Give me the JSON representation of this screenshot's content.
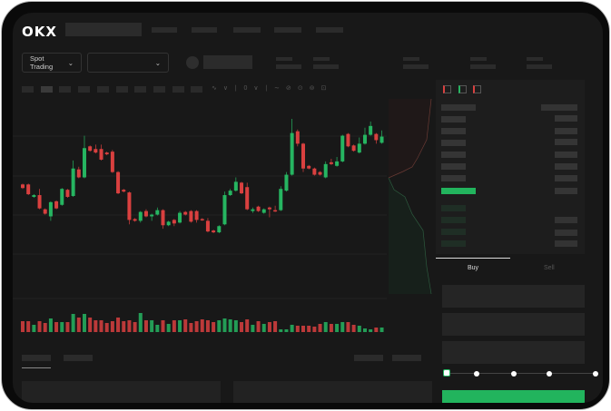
{
  "header": {
    "logo": "OKX"
  },
  "market_selector": {
    "label": "Spot Trading"
  },
  "trade_panel": {
    "tabs": [
      {
        "label": "Buy",
        "active": true
      },
      {
        "label": "Sell",
        "active": false
      }
    ],
    "slider_steps": 5,
    "slider_value": 0
  },
  "colors": {
    "up": "#26b561",
    "down": "#d9403f",
    "background": "#181818",
    "accent_button": "#22b45d"
  },
  "chart_data": {
    "type": "candlestick",
    "ohlc_order": [
      "open",
      "close",
      "high",
      "low"
    ],
    "candles": [
      [
        57,
        53,
        58,
        52
      ],
      [
        57,
        46,
        58,
        45
      ],
      [
        43,
        45,
        46,
        42
      ],
      [
        45,
        30,
        52,
        29
      ],
      [
        29,
        24,
        30,
        23
      ],
      [
        21,
        37,
        38,
        16
      ],
      [
        38,
        30,
        39,
        29
      ],
      [
        34,
        52,
        53,
        33
      ],
      [
        51,
        43,
        52,
        42
      ],
      [
        44,
        75,
        84,
        43
      ],
      [
        74,
        65,
        77,
        64
      ],
      [
        65,
        98,
        112,
        64
      ],
      [
        100,
        95,
        101,
        94
      ],
      [
        97,
        93,
        102,
        92
      ],
      [
        97,
        85,
        102,
        84
      ],
      [
        93,
        91,
        94,
        90
      ],
      [
        94,
        71,
        96,
        70
      ],
      [
        71,
        47,
        72,
        46
      ],
      [
        51,
        49,
        52,
        48
      ],
      [
        48,
        17,
        49,
        12
      ],
      [
        18,
        16,
        19,
        15
      ],
      [
        16,
        26,
        27,
        14
      ],
      [
        27,
        21,
        29,
        20
      ],
      [
        21,
        23,
        24,
        16
      ],
      [
        23,
        28,
        31,
        22
      ],
      [
        28,
        11,
        29,
        7
      ],
      [
        11,
        15,
        16,
        10
      ],
      [
        17,
        13,
        18,
        10
      ],
      [
        14,
        25,
        27,
        13
      ],
      [
        26,
        23,
        27,
        22
      ],
      [
        27,
        15,
        28,
        14
      ],
      [
        27,
        17,
        28,
        14
      ],
      [
        18,
        17,
        19,
        16
      ],
      [
        16,
        4,
        19,
        3
      ],
      [
        5,
        3,
        6,
        2
      ],
      [
        3,
        10,
        11,
        2
      ],
      [
        12,
        45,
        49,
        11
      ],
      [
        45,
        50,
        52,
        44
      ],
      [
        50,
        60,
        65,
        49
      ],
      [
        59,
        47,
        60,
        46
      ],
      [
        54,
        29,
        59,
        28
      ],
      [
        27,
        29,
        31,
        25
      ],
      [
        32,
        27,
        33,
        26
      ],
      [
        25,
        29,
        30,
        24
      ],
      [
        31,
        29,
        32,
        20
      ],
      [
        28,
        27,
        33,
        26
      ],
      [
        28,
        52,
        55,
        27
      ],
      [
        50,
        68,
        71,
        49
      ],
      [
        68,
        115,
        131,
        67
      ],
      [
        117,
        103,
        119,
        100
      ],
      [
        103,
        75,
        104,
        71
      ],
      [
        78,
        75,
        79,
        74
      ],
      [
        75,
        68,
        76,
        67
      ],
      [
        71,
        68,
        72,
        67
      ],
      [
        65,
        80,
        83,
        64
      ],
      [
        82,
        80,
        86,
        79
      ],
      [
        78,
        83,
        88,
        77
      ],
      [
        83,
        112,
        113,
        82
      ],
      [
        114,
        100,
        115,
        99
      ],
      [
        101,
        95,
        102,
        94
      ],
      [
        93,
        103,
        110,
        92
      ],
      [
        103,
        113,
        121,
        102
      ],
      [
        113,
        123,
        128,
        112
      ],
      [
        114,
        107,
        115,
        103
      ],
      [
        104,
        111,
        118,
        103
      ]
    ],
    "volume": [
      12,
      12,
      8,
      12,
      10,
      15,
      11,
      11,
      11,
      20,
      16,
      20,
      16,
      13,
      13,
      10,
      12,
      16,
      12,
      13,
      11,
      21,
      13,
      13,
      8,
      13,
      9,
      13,
      13,
      14,
      10,
      12,
      14,
      13,
      11,
      13,
      15,
      14,
      13,
      11,
      14,
      8,
      12,
      9,
      11,
      12,
      3,
      3,
      8,
      7,
      7,
      7,
      6,
      9,
      11,
      9,
      9,
      11,
      11,
      8,
      7,
      4,
      3,
      5,
      5
    ]
  }
}
